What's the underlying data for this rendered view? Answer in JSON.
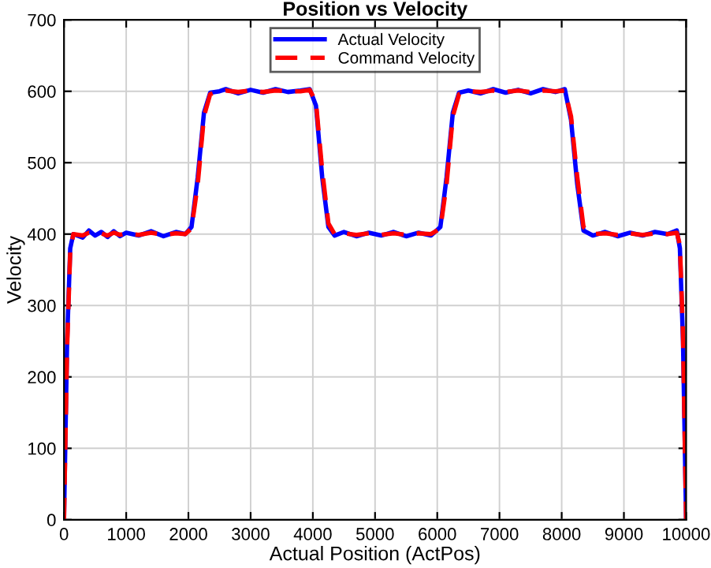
{
  "chart_data": {
    "type": "line",
    "title": "Position vs Velocity",
    "xlabel": "Actual Position (ActPos)",
    "ylabel": "Velocity",
    "x": [
      0,
      50,
      100,
      150,
      300,
      400,
      500,
      600,
      700,
      800,
      900,
      1000,
      1200,
      1400,
      1600,
      1800,
      1950,
      2050,
      2150,
      2250,
      2350,
      2500,
      2600,
      2800,
      3000,
      3200,
      3400,
      3600,
      3800,
      3950,
      4050,
      4150,
      4250,
      4350,
      4500,
      4700,
      4900,
      5100,
      5300,
      5500,
      5700,
      5900,
      6050,
      6150,
      6250,
      6350,
      6500,
      6700,
      6900,
      7100,
      7300,
      7500,
      7700,
      7900,
      8050,
      8150,
      8250,
      8350,
      8500,
      8700,
      8900,
      9100,
      9300,
      9500,
      9700,
      9850,
      9900,
      9950,
      10000
    ],
    "series": [
      {
        "name": "Actual Velocity",
        "color": "#0000ff",
        "line_style": "solid",
        "values": [
          0,
          250,
          380,
          400,
          395,
          405,
          398,
          403,
          396,
          404,
          397,
          402,
          398,
          404,
          397,
          403,
          400,
          410,
          480,
          570,
          598,
          600,
          603,
          597,
          602,
          598,
          603,
          599,
          601,
          603,
          580,
          480,
          410,
          398,
          403,
          397,
          402,
          398,
          403,
          397,
          402,
          398,
          410,
          480,
          570,
          598,
          601,
          597,
          603,
          598,
          602,
          597,
          603,
          599,
          603,
          560,
          470,
          405,
          398,
          403,
          397,
          402,
          398,
          403,
          400,
          405,
          380,
          250,
          0
        ]
      },
      {
        "name": "Command Velocity",
        "color": "#ff0000",
        "line_style": "dashed",
        "values": [
          0,
          240,
          375,
          400,
          398,
          402,
          400,
          401,
          398,
          402,
          399,
          401,
          399,
          402,
          399,
          401,
          400,
          408,
          470,
          565,
          596,
          600,
          601,
          599,
          601,
          599,
          601,
          600,
          600,
          602,
          585,
          490,
          415,
          400,
          401,
          399,
          401,
          399,
          401,
          399,
          401,
          400,
          408,
          470,
          565,
          596,
          600,
          599,
          601,
          599,
          601,
          599,
          601,
          600,
          601,
          565,
          480,
          410,
          400,
          401,
          399,
          401,
          399,
          401,
          400,
          402,
          385,
          260,
          0
        ]
      }
    ],
    "xlim": [
      0,
      10000
    ],
    "xticks": [
      0,
      1000,
      2000,
      3000,
      4000,
      5000,
      6000,
      7000,
      8000,
      9000,
      10000
    ],
    "ylim": [
      0,
      700
    ],
    "yticks": [
      0,
      100,
      200,
      300,
      400,
      500,
      600,
      700
    ],
    "grid": true,
    "legend": "top",
    "marker": "none"
  }
}
